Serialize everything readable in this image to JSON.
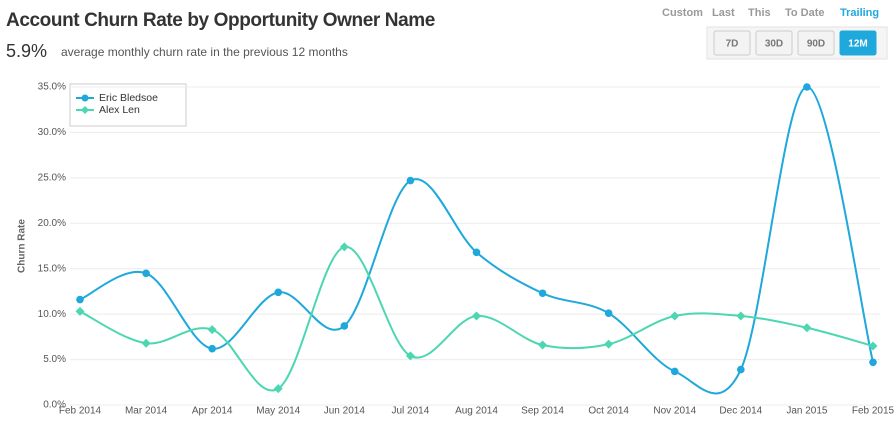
{
  "header": {
    "title": "Account Churn Rate by Opportunity Owner Name",
    "kpi": "5.9%",
    "kpi_text": "average monthly churn rate in the previous 12 months"
  },
  "controls": {
    "tabs": [
      "Custom",
      "Last",
      "This",
      "To Date",
      "Trailing"
    ],
    "active_tab": 4,
    "buttons": [
      "7D",
      "30D",
      "90D",
      "12M"
    ],
    "active_button": 3
  },
  "chart_data": {
    "type": "line",
    "smooth": true,
    "grid": true,
    "legend": "top-left",
    "y_label": "Churn Rate",
    "categories": [
      "Feb 2014",
      "Mar 2014",
      "Apr 2014",
      "May 2014",
      "Jun 2014",
      "Jul 2014",
      "Aug 2014",
      "Sep 2014",
      "Oct 2014",
      "Nov 2014",
      "Dec 2014",
      "Jan 2015",
      "Feb 2015"
    ],
    "ylim": [
      0,
      35
    ],
    "yticks": [
      {
        "value": 0,
        "label": "0.0%"
      },
      {
        "value": 5,
        "label": "5.0%"
      },
      {
        "value": 10,
        "label": "10.0%"
      },
      {
        "value": 15,
        "label": "15.0%"
      },
      {
        "value": 20,
        "label": "20.0%"
      },
      {
        "value": 25,
        "label": "25.0%"
      },
      {
        "value": 30,
        "label": "30.0%"
      },
      {
        "value": 35,
        "label": "35.0%"
      }
    ],
    "series": [
      {
        "name": "Eric Bledsoe",
        "color": "#1fa8dc",
        "marker": "circle",
        "values": [
          11.6,
          14.5,
          6.2,
          12.4,
          8.7,
          24.7,
          16.8,
          12.3,
          10.1,
          3.7,
          3.9,
          35.0,
          4.7
        ]
      },
      {
        "name": "Alex Len",
        "color": "#4dd6b2",
        "marker": "diamond",
        "values": [
          10.3,
          6.8,
          8.3,
          1.8,
          17.4,
          5.4,
          9.8,
          6.6,
          6.7,
          9.8,
          9.8,
          8.5,
          6.5
        ]
      }
    ]
  }
}
